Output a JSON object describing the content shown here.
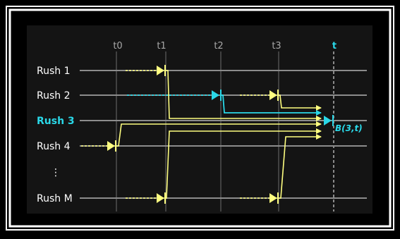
{
  "time_labels": [
    {
      "id": "t0",
      "label": "t0",
      "highlight": false
    },
    {
      "id": "t1",
      "label": "t1",
      "highlight": false
    },
    {
      "id": "t2",
      "label": "t2",
      "highlight": false
    },
    {
      "id": "t3",
      "label": "t3",
      "highlight": false
    },
    {
      "id": "t",
      "label": "t",
      "highlight": true
    }
  ],
  "rows": [
    {
      "id": "rush1",
      "label": "Rush 1",
      "highlight": false
    },
    {
      "id": "rush2",
      "label": "Rush 2",
      "highlight": false
    },
    {
      "id": "rush3",
      "label": "Rush 3",
      "highlight": true
    },
    {
      "id": "rush4",
      "label": "Rush 4",
      "highlight": false
    },
    {
      "id": "ellipsis",
      "label": "⋮",
      "highlight": false
    },
    {
      "id": "rushM",
      "label": "Rush M",
      "highlight": false
    }
  ],
  "annotation": "B(3,t)",
  "colors": {
    "background": "#000000",
    "frame": "#ffffff",
    "panel": "#141414",
    "baseline": "#8c8c8c",
    "timeline": "#6e6e6e",
    "signal": "#ffff80",
    "highlight": "#2ad8e8",
    "label": "#ffffff",
    "time_label": "#a8a8a8"
  }
}
